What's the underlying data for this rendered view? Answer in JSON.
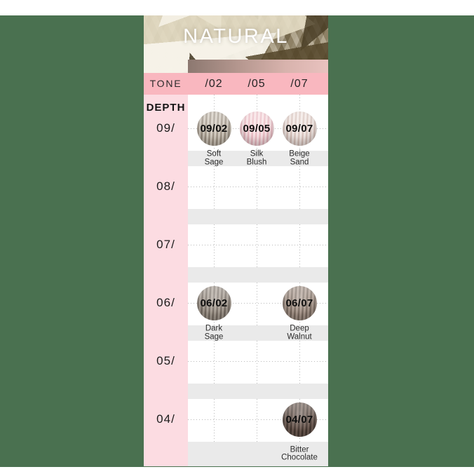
{
  "header": {
    "title": "NATURAL"
  },
  "tone_row": {
    "label": "TONE"
  },
  "depth_column": {
    "label": "DEPTH"
  },
  "chart_data": {
    "type": "table",
    "title": "NATURAL",
    "columns": [
      "/02",
      "/05",
      "/07"
    ],
    "rows": [
      "09/",
      "08/",
      "07/",
      "06/",
      "05/",
      "04/"
    ],
    "cells": [
      {
        "row": "09/",
        "col": "/02",
        "code": "09/02",
        "name": "Soft\nSage",
        "swatch_colors": {
          "base": "#b6ab9e",
          "light": "#ddd6ca",
          "dark": "#8a7f70"
        }
      },
      {
        "row": "09/",
        "col": "/05",
        "code": "09/05",
        "name": "Silk\nBlush",
        "swatch_colors": {
          "base": "#f3cfd4",
          "light": "#fae9ea",
          "dark": "#e2aab4"
        }
      },
      {
        "row": "09/",
        "col": "/07",
        "code": "09/07",
        "name": "Beige\nSand",
        "swatch_colors": {
          "base": "#e8d8d2",
          "light": "#f6edea",
          "dark": "#ccb3ab"
        }
      },
      {
        "row": "06/",
        "col": "/02",
        "code": "06/02",
        "name": "Dark\nSage",
        "swatch_colors": {
          "base": "#93887e",
          "light": "#b3aa9f",
          "dark": "#655c53"
        }
      },
      {
        "row": "06/",
        "col": "/07",
        "code": "06/07",
        "name": "Deep\nWalnut",
        "swatch_colors": {
          "base": "#97867b",
          "light": "#b6a498",
          "dark": "#695a4f"
        }
      },
      {
        "row": "04/",
        "col": "/07",
        "code": "04/07",
        "name": "Bitter\nChocolate",
        "swatch_colors": {
          "base": "#5d4c44",
          "light": "#7d695f",
          "dark": "#392d26"
        }
      }
    ]
  },
  "colors": {
    "background_green": "#4a7150",
    "tone_row_pink": "#f9b7bf",
    "depth_column_pink": "#fcdce2",
    "label_band_gray": "#eaeaea",
    "grid_dot_gray": "#b9b9b9",
    "title_white": "#ffffff",
    "header_bar_gradient_left": "#8c7870",
    "header_bar_gradient_right": "#e9c2bf"
  }
}
